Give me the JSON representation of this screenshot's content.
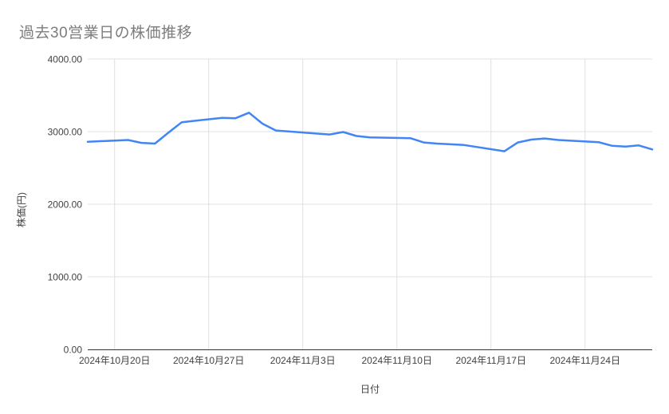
{
  "chart_data": {
    "type": "line",
    "title": "過去30営業日の株価推移",
    "xlabel": "日付",
    "ylabel": "株価(円)",
    "ylim": [
      0,
      4000
    ],
    "x_range": [
      "2024-10-18",
      "2024-11-29"
    ],
    "grid": true,
    "legend": "none",
    "line_color": "#4285f4",
    "axis_line_color": "#333333",
    "grid_color": "#e0e0e0",
    "x": [
      "2024-10-18",
      "2024-10-21",
      "2024-10-22",
      "2024-10-23",
      "2024-10-24",
      "2024-10-25",
      "2024-10-28",
      "2024-10-29",
      "2024-10-30",
      "2024-10-31",
      "2024-11-01",
      "2024-11-05",
      "2024-11-06",
      "2024-11-07",
      "2024-11-08",
      "2024-11-11",
      "2024-11-12",
      "2024-11-13",
      "2024-11-14",
      "2024-11-15",
      "2024-11-18",
      "2024-11-19",
      "2024-11-20",
      "2024-11-21",
      "2024-11-22",
      "2024-11-25",
      "2024-11-26",
      "2024-11-27",
      "2024-11-28",
      "2024-11-29"
    ],
    "values": [
      2860,
      2885,
      2845,
      2835,
      2985,
      3130,
      3190,
      3185,
      3260,
      3110,
      3015,
      2960,
      2995,
      2940,
      2920,
      2910,
      2850,
      2835,
      2825,
      2815,
      2730,
      2850,
      2890,
      2905,
      2885,
      2855,
      2805,
      2795,
      2810,
      2755
    ],
    "y_ticks": [
      {
        "value": 0,
        "label": "0.00"
      },
      {
        "value": 1000,
        "label": "1000.00"
      },
      {
        "value": 2000,
        "label": "2000.00"
      },
      {
        "value": 3000,
        "label": "3000.00"
      },
      {
        "value": 4000,
        "label": "4000.00"
      }
    ],
    "x_ticks": [
      {
        "date": "2024-10-20",
        "label": "2024年10月20日"
      },
      {
        "date": "2024-10-27",
        "label": "2024年10月27日"
      },
      {
        "date": "2024-11-03",
        "label": "2024年11月3日"
      },
      {
        "date": "2024-11-10",
        "label": "2024年11月10日"
      },
      {
        "date": "2024-11-17",
        "label": "2024年11月17日"
      },
      {
        "date": "2024-11-24",
        "label": "2024年11月24日"
      }
    ]
  }
}
